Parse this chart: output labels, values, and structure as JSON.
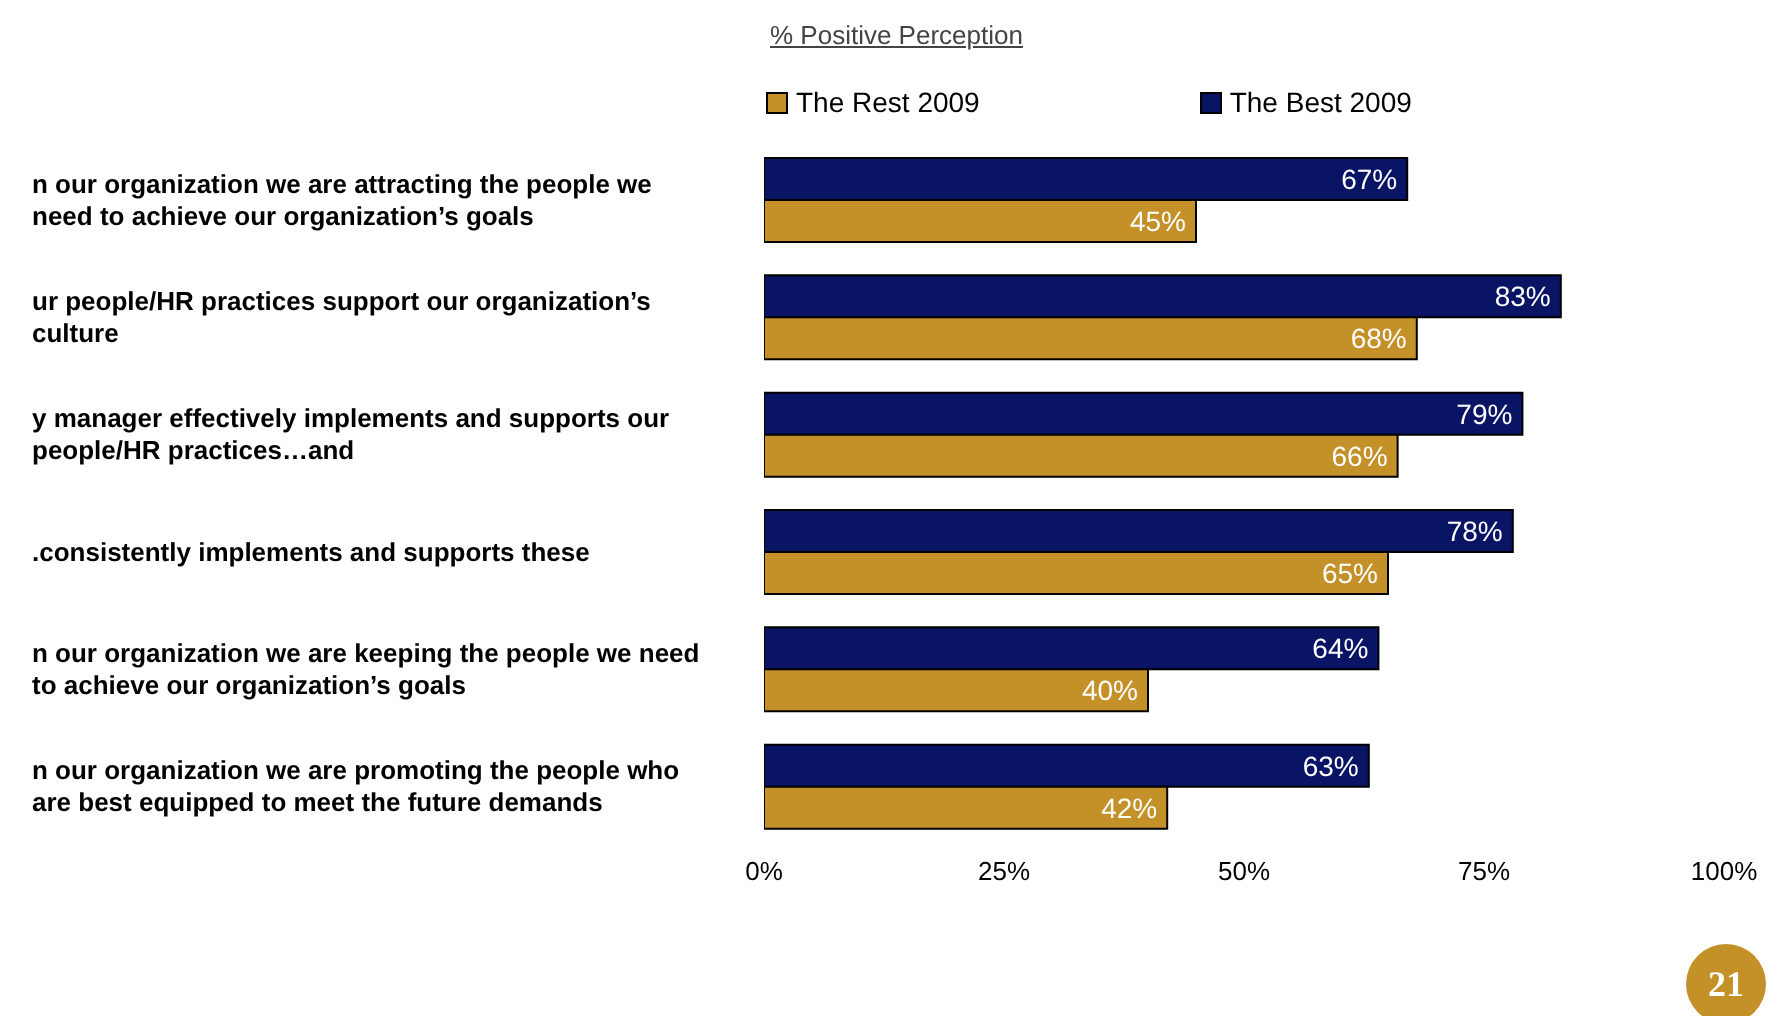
{
  "chart_data": {
    "type": "bar",
    "orientation": "horizontal",
    "title": "% Positive Perception",
    "categories": [
      "n our organization we are attracting the people we need to achieve our organization’s goals",
      "ur people/HR practices support our organization’s culture",
      "y manager effectively implements and supports our people/HR practices…and",
      ".consistently implements and supports these",
      "n our organization we are keeping the people we need to achieve our organization’s goals",
      "n our organization we are promoting the people who are best equipped to meet the future demands"
    ],
    "series": [
      {
        "name": "The Best 2009",
        "color": "#0a1464",
        "values": [
          67,
          83,
          79,
          78,
          64,
          63
        ],
        "value_labels": [
          "67%",
          "83%",
          "79%",
          "78%",
          "64%",
          "63%"
        ]
      },
      {
        "name": "The Rest 2009",
        "color": "#c49028",
        "values": [
          45,
          68,
          66,
          65,
          40,
          42
        ],
        "value_labels": [
          "45%",
          "68%",
          "66%",
          "65%",
          "40%",
          "42%"
        ]
      }
    ],
    "xlim": [
      0,
      100
    ],
    "xticks": [
      {
        "value": 0,
        "label": "0%"
      },
      {
        "value": 25,
        "label": "25%"
      },
      {
        "value": 50,
        "label": "50%"
      },
      {
        "value": 75,
        "label": "75%"
      },
      {
        "value": 100,
        "label": "100%"
      }
    ],
    "legend": "top",
    "grid": false,
    "annotations": [
      "21"
    ]
  }
}
